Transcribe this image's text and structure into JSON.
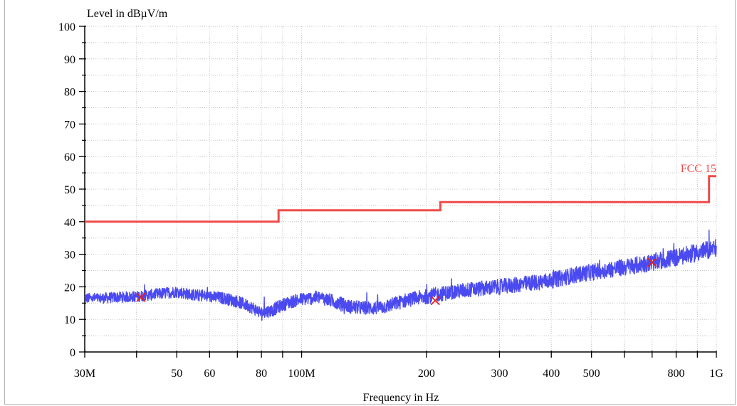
{
  "chart_data": {
    "type": "line",
    "ylabel": "Level in dBµV/m",
    "xlabel": "Frequency in Hz",
    "xscale": "log",
    "xlim": [
      30000000,
      1000000000
    ],
    "ylim": [
      0,
      100
    ],
    "grid": true,
    "x_ticks": [
      {
        "value": 30000000,
        "label": "30M"
      },
      {
        "value": 50000000,
        "label": "50"
      },
      {
        "value": 60000000,
        "label": "60"
      },
      {
        "value": 80000000,
        "label": "80"
      },
      {
        "value": 100000000,
        "label": "100M"
      },
      {
        "value": 200000000,
        "label": "200"
      },
      {
        "value": 300000000,
        "label": "300"
      },
      {
        "value": 400000000,
        "label": "400"
      },
      {
        "value": 500000000,
        "label": "500"
      },
      {
        "value": 800000000,
        "label": "800"
      },
      {
        "value": 1000000000,
        "label": "1G"
      }
    ],
    "x_minor_ticks": [
      40000000,
      70000000,
      90000000,
      600000000,
      700000000,
      900000000
    ],
    "y_ticks": [
      0,
      10,
      20,
      30,
      40,
      50,
      60,
      70,
      80,
      90,
      100
    ],
    "series": [
      {
        "name": "FCC 15",
        "role": "limit",
        "color": "#f04a4a",
        "step": true,
        "x": [
          30000000,
          88000000,
          88000000,
          216000000,
          216000000,
          960000000,
          960000000,
          1000000000
        ],
        "y": [
          40,
          40,
          43.5,
          43.5,
          46,
          46,
          54,
          54
        ]
      },
      {
        "role": "measurement",
        "color": "#4a4af0",
        "noisy": true,
        "x": [
          30000000,
          33000000,
          36000000,
          40000000,
          45000000,
          50000000,
          55000000,
          60000000,
          65000000,
          70000000,
          75000000,
          80000000,
          85000000,
          90000000,
          95000000,
          100000000,
          105000000,
          110000000,
          120000000,
          130000000,
          140000000,
          150000000,
          160000000,
          170000000,
          180000000,
          200000000,
          220000000,
          250000000,
          300000000,
          350000000,
          400000000,
          450000000,
          500000000,
          600000000,
          700000000,
          800000000,
          900000000,
          1000000000
        ],
        "y": [
          16.5,
          16.5,
          16.8,
          17.0,
          17.8,
          18.5,
          17.5,
          17.0,
          16.5,
          15.5,
          14.0,
          12.0,
          12.8,
          14.5,
          15.5,
          16.2,
          16.5,
          16.8,
          15.5,
          14.0,
          13.5,
          13.5,
          14.0,
          15.0,
          16.0,
          17.0,
          18.0,
          19.0,
          20.0,
          21.0,
          22.0,
          23.5,
          24.5,
          26.0,
          27.5,
          29.0,
          30.5,
          32.0
        ]
      }
    ],
    "markers": [
      {
        "x": 41000000,
        "y": 16.8,
        "symbol": "x",
        "color": "#e02020"
      },
      {
        "x": 210000000,
        "y": 15.8,
        "symbol": "x",
        "color": "#e02020"
      },
      {
        "x": 700000000,
        "y": 27.5,
        "symbol": "x",
        "color": "#e02020"
      }
    ]
  }
}
